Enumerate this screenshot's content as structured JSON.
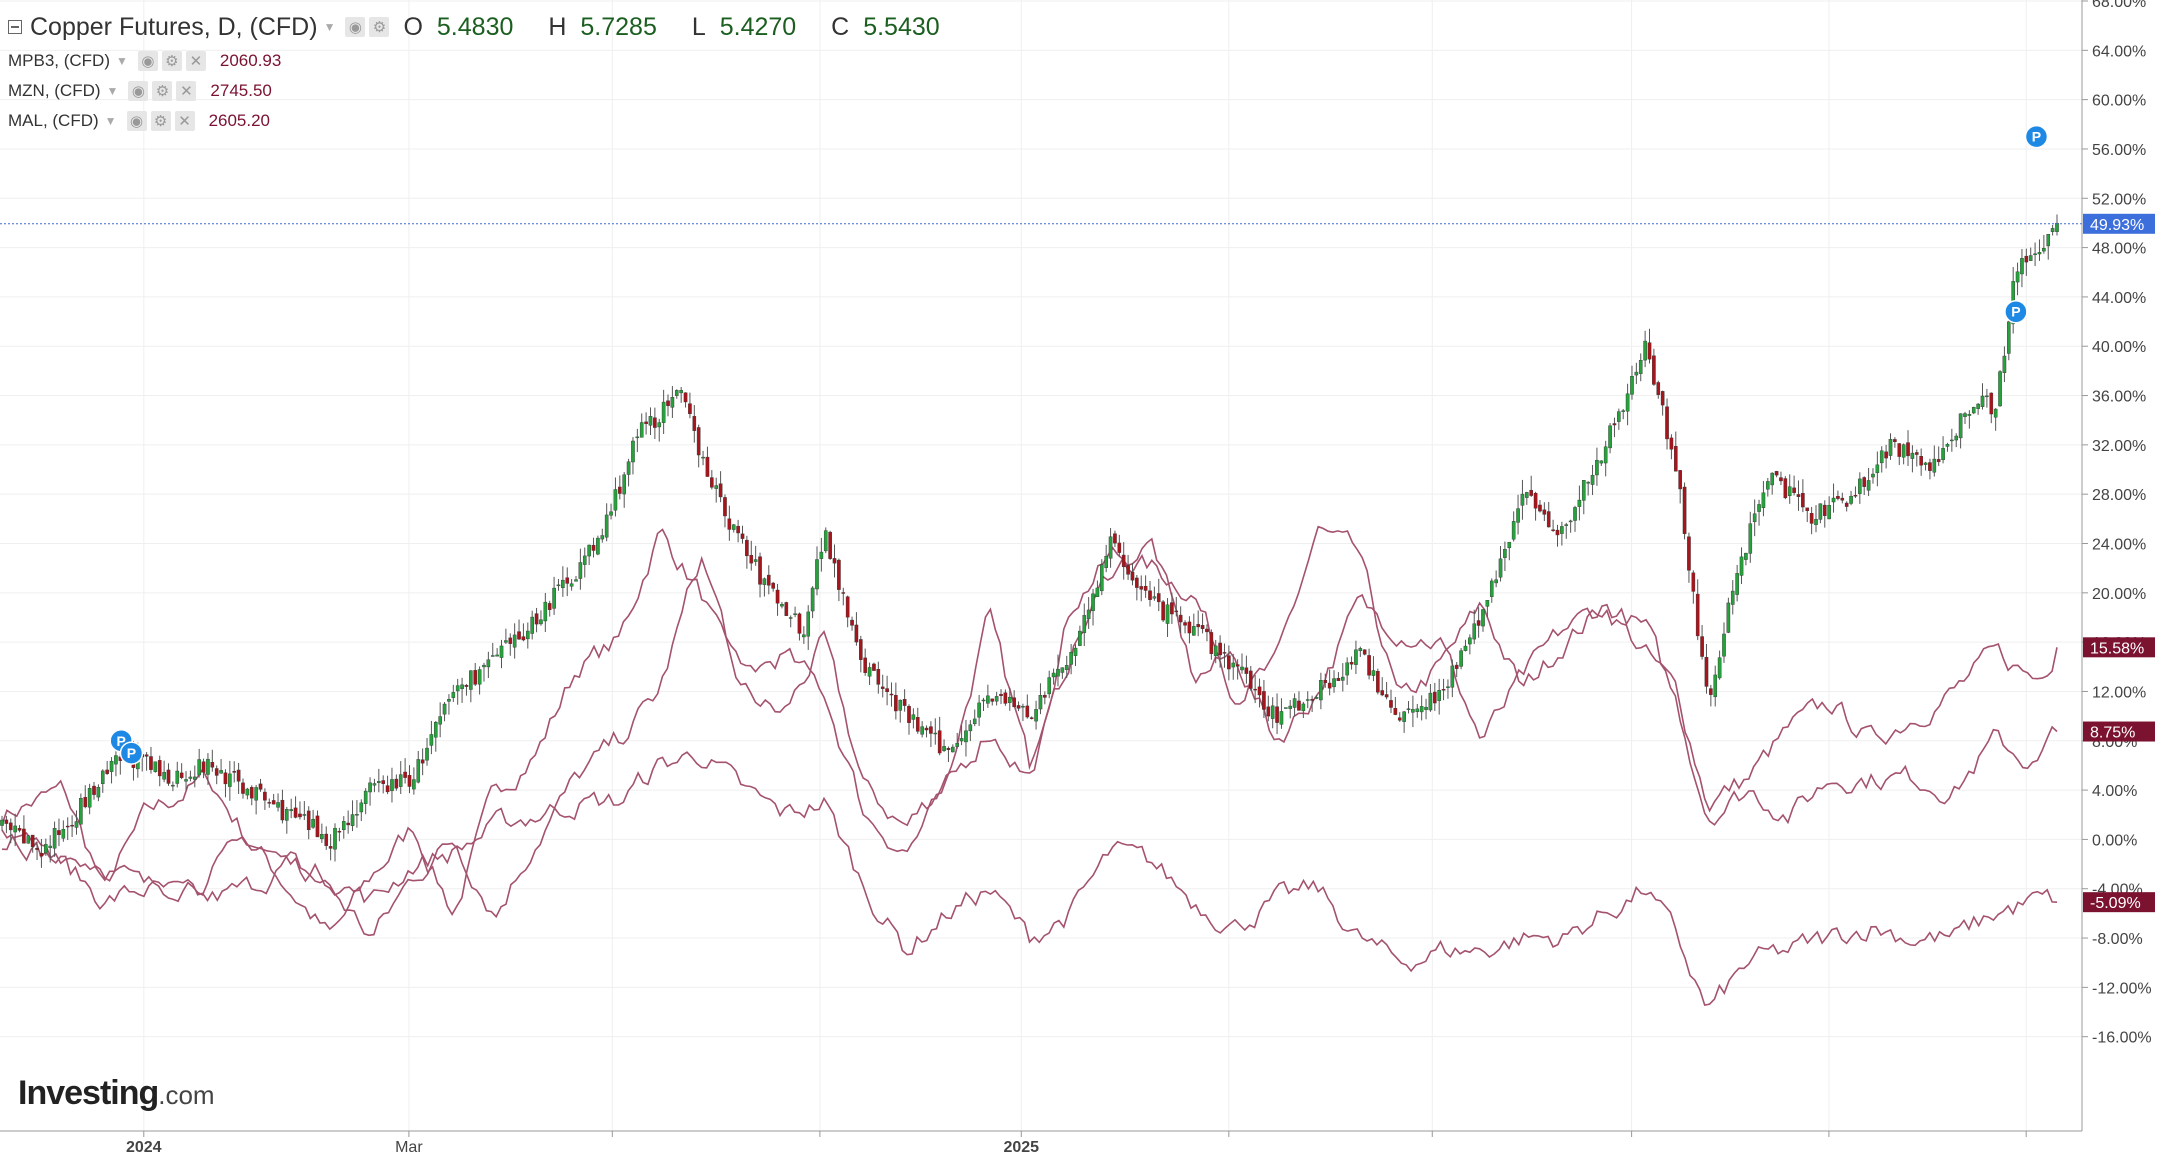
{
  "legend": {
    "main": {
      "title": "Copper Futures, D, (CFD)",
      "open_label": "O",
      "open": "5.4830",
      "high_label": "H",
      "high": "5.7285",
      "low_label": "L",
      "low": "5.4270",
      "close_label": "C",
      "close": "5.5430"
    },
    "comparisons": [
      {
        "name": "MPB3, (CFD)",
        "value": "2060.93"
      },
      {
        "name": "MZN, (CFD)",
        "value": "2745.50"
      },
      {
        "name": "MAL, (CFD)",
        "value": "2605.20"
      }
    ]
  },
  "logo": {
    "brand": "Investing",
    "suffix": ".com"
  },
  "chart_data": {
    "type": "line",
    "title": "Copper Futures, D, (CFD)",
    "y_scale": "percent change",
    "ylim": [
      -20,
      68
    ],
    "y_ticks": [
      "68.00%",
      "64.00%",
      "60.00%",
      "56.00%",
      "52.00%",
      "48.00%",
      "44.00%",
      "40.00%",
      "36.00%",
      "32.00%",
      "28.00%",
      "24.00%",
      "20.00%",
      "16.00%",
      "12.00%",
      "8.00%",
      "4.00%",
      "0.00%",
      "-4.00%",
      "-8.00%",
      "-12.00%",
      "-16.00%"
    ],
    "x_ticks": [
      "2024",
      "Mar",
      "2025"
    ],
    "grid": true,
    "current_labels": [
      {
        "series": "Copper Futures",
        "label": "49.93%",
        "value": 49.93,
        "color": "#3d6fdc"
      },
      {
        "series": "MPB3",
        "label": "15.58%",
        "value": 15.58,
        "color": "#7a1230"
      },
      {
        "series": "MZN",
        "label": "8.75%",
        "value": 8.75,
        "color": "#7a1230"
      },
      {
        "series": "MAL",
        "label": "-5.09%",
        "value": -5.09,
        "color": "#7a1230"
      }
    ],
    "series": [
      {
        "name": "Copper Futures",
        "style": "candlestick",
        "up_color": "#26a23c",
        "down_color": "#a8141c",
        "approx_close_path": [
          [
            0,
            1
          ],
          [
            0.02,
            -1
          ],
          [
            0.04,
            3
          ],
          [
            0.06,
            7
          ],
          [
            0.08,
            5
          ],
          [
            0.1,
            6
          ],
          [
            0.13,
            3
          ],
          [
            0.16,
            0
          ],
          [
            0.18,
            4
          ],
          [
            0.2,
            5
          ],
          [
            0.22,
            12
          ],
          [
            0.25,
            16
          ],
          [
            0.27,
            20
          ],
          [
            0.29,
            24
          ],
          [
            0.31,
            33
          ],
          [
            0.33,
            36
          ],
          [
            0.35,
            27
          ],
          [
            0.37,
            21
          ],
          [
            0.39,
            17
          ],
          [
            0.4,
            25
          ],
          [
            0.42,
            14
          ],
          [
            0.44,
            10
          ],
          [
            0.46,
            7
          ],
          [
            0.48,
            12
          ],
          [
            0.5,
            10
          ],
          [
            0.52,
            15
          ],
          [
            0.54,
            24
          ],
          [
            0.56,
            19
          ],
          [
            0.58,
            17
          ],
          [
            0.6,
            14
          ],
          [
            0.62,
            10
          ],
          [
            0.64,
            12
          ],
          [
            0.66,
            15
          ],
          [
            0.68,
            10
          ],
          [
            0.7,
            12
          ],
          [
            0.72,
            18
          ],
          [
            0.74,
            28
          ],
          [
            0.76,
            25
          ],
          [
            0.78,
            32
          ],
          [
            0.8,
            40
          ],
          [
            0.815,
            30
          ],
          [
            0.83,
            11
          ],
          [
            0.845,
            22
          ],
          [
            0.86,
            30
          ],
          [
            0.88,
            26
          ],
          [
            0.9,
            28
          ],
          [
            0.92,
            32
          ],
          [
            0.94,
            30
          ],
          [
            0.96,
            36
          ],
          [
            0.97,
            35
          ],
          [
            0.98,
            46
          ],
          [
            1.0,
            49.93
          ]
        ]
      },
      {
        "name": "MPB3",
        "style": "line",
        "color": "#a4526e",
        "approx_path": [
          [
            0,
            2
          ],
          [
            0.03,
            4
          ],
          [
            0.05,
            -4
          ],
          [
            0.07,
            2
          ],
          [
            0.1,
            5
          ],
          [
            0.12,
            0
          ],
          [
            0.14,
            -4
          ],
          [
            0.16,
            -8
          ],
          [
            0.18,
            -3
          ],
          [
            0.2,
            1
          ],
          [
            0.22,
            -6
          ],
          [
            0.24,
            4
          ],
          [
            0.26,
            7
          ],
          [
            0.28,
            14
          ],
          [
            0.3,
            16
          ],
          [
            0.32,
            25
          ],
          [
            0.34,
            20
          ],
          [
            0.36,
            12
          ],
          [
            0.38,
            10
          ],
          [
            0.4,
            16
          ],
          [
            0.42,
            4
          ],
          [
            0.44,
            1
          ],
          [
            0.46,
            5
          ],
          [
            0.48,
            18
          ],
          [
            0.5,
            6
          ],
          [
            0.52,
            19
          ],
          [
            0.54,
            23
          ],
          [
            0.56,
            22
          ],
          [
            0.58,
            20
          ],
          [
            0.6,
            12
          ],
          [
            0.62,
            14
          ],
          [
            0.64,
            25
          ],
          [
            0.66,
            23
          ],
          [
            0.68,
            11
          ],
          [
            0.7,
            14
          ],
          [
            0.72,
            19
          ],
          [
            0.74,
            12
          ],
          [
            0.76,
            16
          ],
          [
            0.78,
            19
          ],
          [
            0.8,
            15
          ],
          [
            0.815,
            12
          ],
          [
            0.83,
            3
          ],
          [
            0.85,
            5
          ],
          [
            0.87,
            9
          ],
          [
            0.89,
            11
          ],
          [
            0.91,
            8
          ],
          [
            0.93,
            10
          ],
          [
            0.95,
            12
          ],
          [
            0.97,
            15
          ],
          [
            0.99,
            13
          ],
          [
            1.0,
            15.58
          ]
        ]
      },
      {
        "name": "MZN",
        "style": "line",
        "color": "#a4526e",
        "approx_path": [
          [
            0,
            1
          ],
          [
            0.03,
            -2
          ],
          [
            0.05,
            -5
          ],
          [
            0.07,
            -4
          ],
          [
            0.1,
            -5
          ],
          [
            0.12,
            -4
          ],
          [
            0.14,
            -2
          ],
          [
            0.16,
            -4
          ],
          [
            0.18,
            -8
          ],
          [
            0.2,
            -3
          ],
          [
            0.22,
            0
          ],
          [
            0.24,
            -6
          ],
          [
            0.26,
            0
          ],
          [
            0.28,
            5
          ],
          [
            0.3,
            8
          ],
          [
            0.32,
            12
          ],
          [
            0.34,
            23
          ],
          [
            0.36,
            13
          ],
          [
            0.38,
            15
          ],
          [
            0.4,
            12
          ],
          [
            0.42,
            2
          ],
          [
            0.44,
            -1
          ],
          [
            0.46,
            4
          ],
          [
            0.48,
            9
          ],
          [
            0.5,
            5
          ],
          [
            0.52,
            15
          ],
          [
            0.54,
            22
          ],
          [
            0.56,
            24
          ],
          [
            0.58,
            13
          ],
          [
            0.6,
            15
          ],
          [
            0.62,
            8
          ],
          [
            0.64,
            12
          ],
          [
            0.66,
            19
          ],
          [
            0.68,
            17
          ],
          [
            0.7,
            16
          ],
          [
            0.72,
            8
          ],
          [
            0.74,
            13
          ],
          [
            0.76,
            17
          ],
          [
            0.78,
            19
          ],
          [
            0.8,
            17
          ],
          [
            0.815,
            11
          ],
          [
            0.83,
            2
          ],
          [
            0.85,
            4
          ],
          [
            0.87,
            2
          ],
          [
            0.89,
            5
          ],
          [
            0.91,
            5
          ],
          [
            0.93,
            5
          ],
          [
            0.95,
            4
          ],
          [
            0.97,
            8
          ],
          [
            0.99,
            6
          ],
          [
            1.0,
            8.75
          ]
        ]
      },
      {
        "name": "MAL",
        "style": "line",
        "color": "#a4526e",
        "approx_path": [
          [
            0,
            0
          ],
          [
            0.03,
            -1
          ],
          [
            0.05,
            -2
          ],
          [
            0.07,
            -4
          ],
          [
            0.1,
            -3
          ],
          [
            0.12,
            0
          ],
          [
            0.14,
            -2
          ],
          [
            0.16,
            -3
          ],
          [
            0.18,
            -5
          ],
          [
            0.2,
            -2
          ],
          [
            0.22,
            -1
          ],
          [
            0.24,
            1
          ],
          [
            0.26,
            2
          ],
          [
            0.28,
            3
          ],
          [
            0.3,
            3
          ],
          [
            0.32,
            6
          ],
          [
            0.34,
            7
          ],
          [
            0.36,
            4
          ],
          [
            0.38,
            2
          ],
          [
            0.4,
            3
          ],
          [
            0.42,
            -4
          ],
          [
            0.44,
            -9
          ],
          [
            0.46,
            -6
          ],
          [
            0.48,
            -4
          ],
          [
            0.5,
            -8
          ],
          [
            0.52,
            -6
          ],
          [
            0.54,
            -1
          ],
          [
            0.56,
            -2
          ],
          [
            0.58,
            -5
          ],
          [
            0.6,
            -7
          ],
          [
            0.62,
            -5
          ],
          [
            0.64,
            -4
          ],
          [
            0.66,
            -8
          ],
          [
            0.68,
            -10
          ],
          [
            0.7,
            -9
          ],
          [
            0.72,
            -9
          ],
          [
            0.74,
            -8
          ],
          [
            0.76,
            -8
          ],
          [
            0.78,
            -6
          ],
          [
            0.8,
            -4
          ],
          [
            0.815,
            -8
          ],
          [
            0.83,
            -14
          ],
          [
            0.85,
            -10
          ],
          [
            0.87,
            -9
          ],
          [
            0.89,
            -8
          ],
          [
            0.91,
            -7
          ],
          [
            0.93,
            -8
          ],
          [
            0.95,
            -8
          ],
          [
            0.97,
            -6
          ],
          [
            0.99,
            -5
          ],
          [
            1.0,
            -5.09
          ]
        ]
      }
    ],
    "markers": [
      {
        "label": "P",
        "at": [
          0.058,
          8
        ]
      },
      {
        "label": "P",
        "at": [
          0.063,
          7
        ]
      },
      {
        "label": "P",
        "at": [
          0.98,
          42.8
        ]
      },
      {
        "label": "P",
        "at": [
          0.99,
          57
        ]
      }
    ]
  }
}
